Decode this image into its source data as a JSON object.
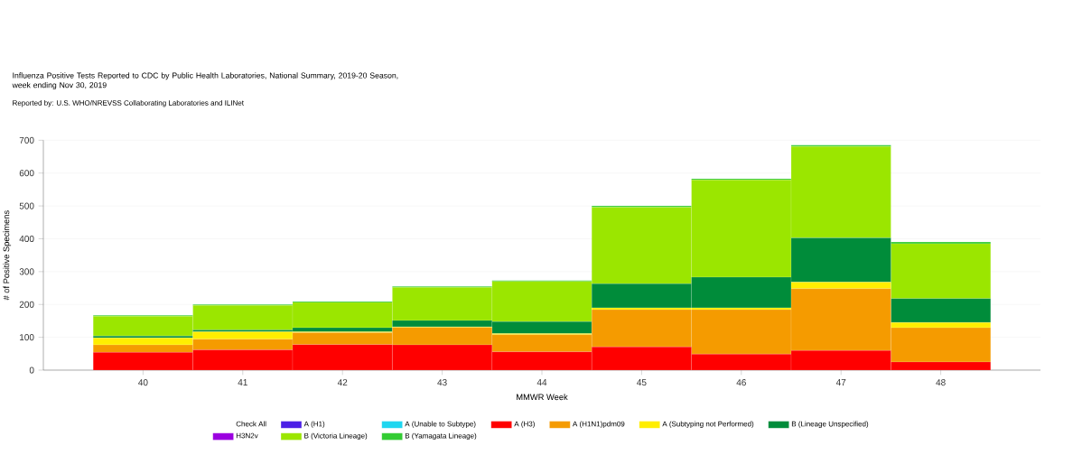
{
  "chart_data": {
    "type": "bar",
    "stacked": true,
    "title": "Influenza Positive Tests Reported to CDC by Public Health Laboratories, National Summary, 2019-20 Season, week ending Nov 30, 2019",
    "subtitle": "Reported by: U.S. WHO/NREVSS Collaborating Laboratories and ILINet",
    "xlabel": "MMWR Week",
    "ylabel": "# of Positive Specimens",
    "legend_title": "Check All",
    "categories": [
      "40",
      "41",
      "42",
      "43",
      "44",
      "45",
      "46",
      "47",
      "48"
    ],
    "series": [
      {
        "name": "A (H1)",
        "color": "#4b1ee6",
        "values": [
          0,
          0,
          0,
          0,
          0,
          0,
          0,
          0,
          0
        ]
      },
      {
        "name": "A (Unable to Subtype)",
        "color": "#1ed6f0",
        "values": [
          0,
          0,
          0,
          0,
          0,
          0,
          0,
          0,
          0
        ]
      },
      {
        "name": "A (H3)",
        "color": "#ff0000",
        "values": [
          54,
          62,
          78,
          77,
          56,
          71,
          49,
          60,
          25
        ]
      },
      {
        "name": "A (H1N1)pdm09",
        "color": "#f59b00",
        "values": [
          23,
          32,
          36,
          53,
          52,
          113,
          135,
          188,
          104
        ]
      },
      {
        "name": "A (Subtyping not Performed)",
        "color": "#ffee00",
        "values": [
          21,
          23,
          3,
          2,
          3,
          6,
          6,
          20,
          16
        ]
      },
      {
        "name": "B (Lineage Unspecified)",
        "color": "#008c3a",
        "values": [
          6,
          5,
          12,
          19,
          37,
          73,
          93,
          135,
          73
        ]
      },
      {
        "name": "H3N2v",
        "color": "#9b00e0",
        "values": [
          0,
          0,
          0,
          0,
          0,
          0,
          0,
          0,
          0
        ]
      },
      {
        "name": "B (Victoria Lineage)",
        "color": "#9be600",
        "values": [
          60,
          75,
          77,
          101,
          122,
          233,
          296,
          278,
          167
        ]
      },
      {
        "name": "B (Yamagata Lineage)",
        "color": "#33cc33",
        "values": [
          3,
          3,
          3,
          3,
          3,
          4,
          4,
          4,
          5
        ]
      }
    ],
    "ylim": [
      0,
      700
    ],
    "yticks": [
      0,
      100,
      200,
      300,
      400,
      500,
      600,
      700
    ],
    "grid": "y",
    "legend": "bottom"
  }
}
